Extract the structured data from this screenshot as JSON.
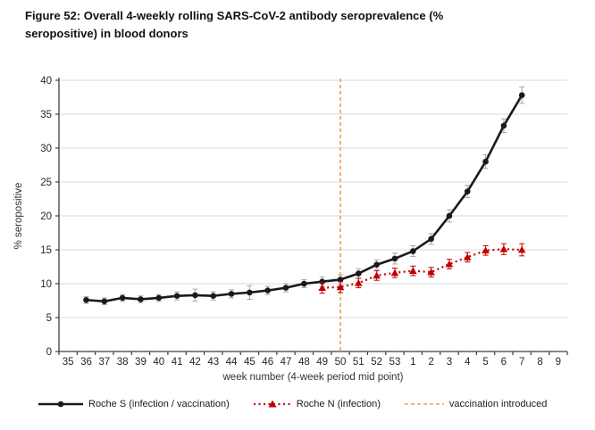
{
  "heading": {
    "line1": "Figure 52: Overall 4-weekly rolling SARS-CoV-2 antibody seroprevalence (%",
    "line2": "seropositive) in blood donors"
  },
  "chart_data": {
    "type": "line",
    "title": "Figure 52: Overall 4-weekly rolling SARS-CoV-2 antibody seroprevalence (% seropositive) in blood donors",
    "xlabel": "week number (4-week period mid point)",
    "ylabel": "% seropositive",
    "ylim": [
      0,
      40
    ],
    "ytick_step": 5,
    "grid": true,
    "legend_position": "bottom",
    "x_categories": [
      "35",
      "36",
      "37",
      "38",
      "39",
      "40",
      "41",
      "42",
      "43",
      "44",
      "45",
      "46",
      "47",
      "48",
      "49",
      "50",
      "51",
      "52",
      "53",
      "1",
      "2",
      "3",
      "4",
      "5",
      "6",
      "7",
      "8",
      "9"
    ],
    "series": [
      {
        "name": "Roche S (infection / vaccination)",
        "color": "#1a1a1a",
        "error_color": "#a6a6a6",
        "marker": "circle",
        "line_style": "solid",
        "weeks": [
          "36",
          "37",
          "38",
          "39",
          "40",
          "41",
          "42",
          "43",
          "44",
          "45",
          "46",
          "47",
          "48",
          "49",
          "50",
          "51",
          "52",
          "53",
          "1",
          "2",
          "3",
          "4",
          "5",
          "6",
          "7"
        ],
        "values": [
          7.6,
          7.4,
          7.9,
          7.7,
          7.9,
          8.2,
          8.3,
          8.2,
          8.5,
          8.7,
          9.0,
          9.4,
          10.0,
          10.3,
          10.6,
          11.5,
          12.8,
          13.7,
          14.8,
          16.6,
          20.0,
          23.6,
          28.0,
          33.3,
          37.8
        ],
        "error": [
          0.5,
          0.5,
          0.5,
          0.5,
          0.5,
          0.6,
          0.9,
          0.6,
          0.6,
          1.0,
          0.6,
          0.6,
          0.6,
          0.7,
          0.7,
          0.7,
          0.7,
          0.8,
          0.8,
          0.8,
          0.9,
          0.9,
          1.0,
          1.0,
          1.2
        ]
      },
      {
        "name": "Roche N (infection)",
        "color": "#c00000",
        "error_color": "#c00000",
        "marker": "triangle",
        "line_style": "dotted",
        "weeks": [
          "49",
          "50",
          "51",
          "52",
          "53",
          "1",
          "2",
          "3",
          "4",
          "5",
          "6",
          "7"
        ],
        "values": [
          9.4,
          9.5,
          10.1,
          11.2,
          11.6,
          11.9,
          11.7,
          12.9,
          13.9,
          14.9,
          15.1,
          15.0
        ],
        "error": [
          0.8,
          0.8,
          0.7,
          0.7,
          0.7,
          0.7,
          0.7,
          0.7,
          0.7,
          0.7,
          0.8,
          0.9
        ]
      }
    ],
    "vline": {
      "at_category": "50",
      "label": "vaccination introduced",
      "color": "#f29c50",
      "style": "dashed"
    }
  },
  "colors": {
    "background": "#ffffff",
    "gridline": "#d9d9d9",
    "axis": "#404040",
    "tick_label": "#262626",
    "roche_s": "#1a1a1a",
    "roche_n": "#c00000",
    "vaccination_line": "#f29c50"
  }
}
